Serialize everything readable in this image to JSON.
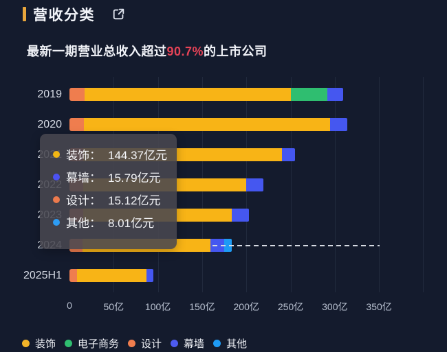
{
  "header": {
    "title": "营收分类",
    "accent_color": "#e9a63c"
  },
  "subtitle": {
    "prefix": "最新一期营业总收入超过",
    "highlight": "90.7%",
    "suffix": "的上市公司",
    "highlight_color": "#e64357"
  },
  "chart_data": {
    "type": "bar",
    "orientation": "horizontal",
    "stacked": true,
    "unit": "亿元",
    "categories": [
      "2019",
      "2020",
      "2021",
      "2022",
      "2023",
      "2024",
      "2025H1"
    ],
    "series": [
      {
        "key": "design",
        "name": "设计",
        "color": "#ef7d4e",
        "values": [
          17,
          16.5,
          15.5,
          15.5,
          15.5,
          15.12,
          8.5
        ]
      },
      {
        "key": "decoration",
        "name": "装饰",
        "color": "#f8b416",
        "values": [
          233.5,
          278.5,
          224.5,
          184.5,
          168,
          144.37,
          78.5
        ]
      },
      {
        "key": "ecommerce",
        "name": "电子商务",
        "color": "#2fbe70",
        "values": [
          41,
          0,
          0,
          0,
          0,
          0,
          0
        ]
      },
      {
        "key": "curtain-wall",
        "name": "幕墙",
        "color": "#4557f0",
        "values": [
          18,
          19.5,
          15,
          19,
          19.5,
          15.79,
          8
        ]
      },
      {
        "key": "other",
        "name": "其他",
        "color": "#1e9bf5",
        "values": [
          0,
          0,
          0,
          0,
          0,
          8.01,
          0
        ]
      }
    ],
    "totals": [
      309.5,
      314.5,
      255,
      219,
      203,
      183.29,
      95
    ],
    "x_ticks": [
      "0",
      "50亿",
      "100亿",
      "150亿",
      "200亿",
      "250亿",
      "300亿",
      "350亿"
    ],
    "x_tick_values": [
      0,
      50,
      100,
      150,
      200,
      250,
      300,
      350
    ],
    "x_max": 400,
    "grid": true,
    "markline": {
      "category": "2024",
      "from": 162,
      "to": 351,
      "style": "dashed",
      "color": "#d7dbe3"
    }
  },
  "tooltip": {
    "category": "2024",
    "rows": [
      {
        "key": "decoration",
        "label": "装饰：",
        "value": "144.37亿元",
        "color": "#f2b614"
      },
      {
        "key": "curtain-wall",
        "label": "幕墙：",
        "value": "15.79亿元",
        "color": "#4c52f2"
      },
      {
        "key": "design",
        "label": "设计：",
        "value": "15.12亿元",
        "color": "#ec7a4d"
      },
      {
        "key": "other",
        "label": "其他：",
        "value": "8.01亿元",
        "color": "#2d9cf4"
      }
    ]
  },
  "legend": {
    "items": [
      {
        "key": "decoration",
        "label": "装饰",
        "color": "#f2b429"
      },
      {
        "key": "ecommerce",
        "label": "电子商务",
        "color": "#2fbe70"
      },
      {
        "key": "design",
        "label": "设计",
        "color": "#ef7d4e"
      },
      {
        "key": "curtain-wall",
        "label": "幕墙",
        "color": "#4d5bf0"
      },
      {
        "key": "other",
        "label": "其他",
        "color": "#1e9bf5"
      }
    ]
  }
}
